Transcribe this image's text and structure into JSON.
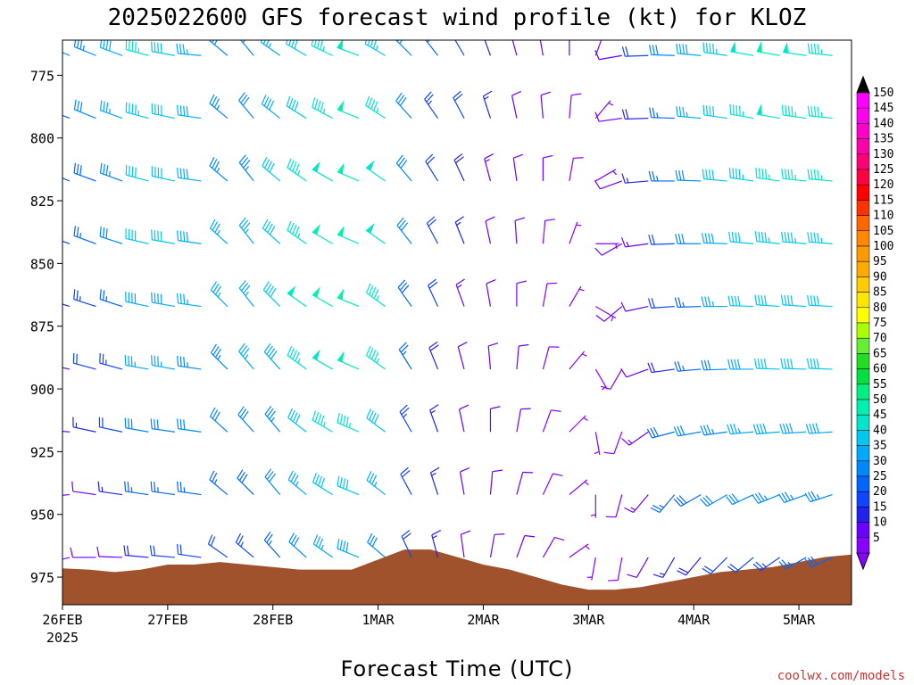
{
  "chart_data": {
    "type": "wind-barb-time-height",
    "title": "2025022600 GFS forecast wind profile (kt) for KLOZ",
    "xlabel": "Forecast Time (UTC)",
    "ylabel": "",
    "credit": "coolwx.com/models",
    "x_axis": {
      "min_hours": 0,
      "max_hours": 180,
      "ticks": [
        {
          "label": "26FEB",
          "sublabel": "2025",
          "hours": 0
        },
        {
          "label": "27FEB",
          "sublabel": "",
          "hours": 24
        },
        {
          "label": "28FEB",
          "sublabel": "",
          "hours": 48
        },
        {
          "label": "1MAR",
          "sublabel": "",
          "hours": 72
        },
        {
          "label": "2MAR",
          "sublabel": "",
          "hours": 96
        },
        {
          "label": "3MAR",
          "sublabel": "",
          "hours": 120
        },
        {
          "label": "4MAR",
          "sublabel": "",
          "hours": 144
        },
        {
          "label": "5MAR",
          "sublabel": "",
          "hours": 168
        }
      ]
    },
    "y_axis": {
      "unit": "hPa",
      "min": 761,
      "max": 986,
      "reversed": true,
      "ticks": [
        775,
        800,
        825,
        850,
        875,
        900,
        925,
        950,
        975
      ]
    },
    "levels": [
      765,
      790,
      815,
      840,
      865,
      890,
      915,
      940,
      965
    ],
    "times_hours": [
      0,
      6,
      12,
      18,
      24,
      30,
      36,
      42,
      48,
      54,
      60,
      66,
      72,
      78,
      84,
      90,
      96,
      102,
      108,
      114,
      120,
      126,
      132,
      138,
      144,
      150,
      156,
      162,
      168,
      174
    ],
    "wind_series": [
      {
        "time_hours": 0,
        "dir_deg": [
          292,
          292,
          292,
          290,
          288,
          282,
          275,
          265,
          255
        ],
        "speed_kt": [
          30,
          27,
          25,
          22,
          18,
          14,
          10,
          8,
          6
        ]
      },
      {
        "time_hours": 6,
        "dir_deg": [
          292,
          292,
          290,
          290,
          288,
          285,
          282,
          278,
          270
        ],
        "speed_kt": [
          33,
          30,
          28,
          26,
          23,
          20,
          16,
          12,
          10
        ]
      },
      {
        "time_hours": 12,
        "dir_deg": [
          290,
          290,
          290,
          288,
          288,
          285,
          282,
          278,
          272
        ],
        "speed_kt": [
          38,
          35,
          33,
          30,
          27,
          24,
          20,
          16,
          12
        ]
      },
      {
        "time_hours": 18,
        "dir_deg": [
          285,
          285,
          285,
          283,
          282,
          280,
          280,
          278,
          275
        ],
        "speed_kt": [
          46,
          44,
          42,
          40,
          38,
          35,
          30,
          25,
          18
        ]
      },
      {
        "time_hours": 24,
        "dir_deg": [
          280,
          282,
          282,
          280,
          280,
          280,
          278,
          278,
          275
        ],
        "speed_kt": [
          40,
          42,
          42,
          40,
          38,
          35,
          30,
          25,
          20
        ]
      },
      {
        "time_hours": 30,
        "dir_deg": [
          275,
          278,
          278,
          278,
          278,
          278,
          278,
          278,
          278
        ],
        "speed_kt": [
          36,
          38,
          38,
          38,
          36,
          34,
          30,
          26,
          20
        ]
      },
      {
        "time_hours": 36,
        "dir_deg": [
          310,
          310,
          310,
          312,
          315,
          315,
          312,
          310,
          305
        ],
        "speed_kt": [
          32,
          34,
          34,
          35,
          35,
          34,
          30,
          26,
          22
        ]
      },
      {
        "time_hours": 42,
        "dir_deg": [
          320,
          320,
          322,
          322,
          322,
          320,
          318,
          315,
          310
        ],
        "speed_kt": [
          30,
          32,
          34,
          36,
          36,
          35,
          32,
          28,
          24
        ]
      },
      {
        "time_hours": 48,
        "dir_deg": [
          305,
          308,
          310,
          312,
          315,
          318,
          320,
          320,
          318
        ],
        "speed_kt": [
          36,
          38,
          40,
          40,
          40,
          38,
          34,
          30,
          26
        ]
      },
      {
        "time_hours": 54,
        "dir_deg": [
          300,
          302,
          305,
          305,
          305,
          306,
          308,
          310,
          312
        ],
        "speed_kt": [
          40,
          42,
          45,
          47,
          48,
          46,
          42,
          36,
          30
        ]
      },
      {
        "time_hours": 60,
        "dir_deg": [
          295,
          298,
          300,
          300,
          300,
          300,
          300,
          302,
          305
        ],
        "speed_kt": [
          45,
          46,
          48,
          50,
          50,
          48,
          45,
          40,
          35
        ]
      },
      {
        "time_hours": 66,
        "dir_deg": [
          290,
          292,
          293,
          293,
          292,
          293,
          293,
          292,
          292
        ],
        "speed_kt": [
          48,
          50,
          51,
          52,
          52,
          50,
          46,
          42,
          38
        ]
      },
      {
        "time_hours": 72,
        "dir_deg": [
          300,
          303,
          305,
          305,
          306,
          306,
          307,
          308,
          310
        ],
        "speed_kt": [
          44,
          46,
          48,
          48,
          47,
          45,
          40,
          35,
          30
        ]
      },
      {
        "time_hours": 78,
        "dir_deg": [
          315,
          318,
          320,
          322,
          325,
          328,
          330,
          332,
          335
        ],
        "speed_kt": [
          30,
          30,
          30,
          30,
          28,
          26,
          24,
          22,
          20
        ]
      },
      {
        "time_hours": 84,
        "dir_deg": [
          322,
          325,
          328,
          332,
          335,
          338,
          340,
          342,
          345
        ],
        "speed_kt": [
          25,
          24,
          22,
          22,
          20,
          18,
          17,
          16,
          15
        ]
      },
      {
        "time_hours": 90,
        "dir_deg": [
          330,
          332,
          335,
          338,
          340,
          345,
          348,
          350,
          352
        ],
        "speed_kt": [
          22,
          20,
          18,
          16,
          14,
          12,
          12,
          12,
          12
        ]
      },
      {
        "time_hours": 96,
        "dir_deg": [
          340,
          342,
          345,
          348,
          350,
          355,
          0,
          5,
          10
        ],
        "speed_kt": [
          16,
          15,
          14,
          12,
          12,
          12,
          12,
          12,
          12
        ]
      },
      {
        "time_hours": 102,
        "dir_deg": [
          345,
          348,
          352,
          356,
          0,
          5,
          10,
          15,
          20
        ],
        "speed_kt": [
          14,
          12,
          12,
          11,
          10,
          10,
          10,
          10,
          10
        ]
      },
      {
        "time_hours": 108,
        "dir_deg": [
          350,
          355,
          0,
          5,
          10,
          15,
          20,
          25,
          30
        ],
        "speed_kt": [
          12,
          10,
          10,
          9,
          8,
          8,
          8,
          8,
          8
        ]
      },
      {
        "time_hours": 114,
        "dir_deg": [
          0,
          5,
          10,
          20,
          30,
          40,
          45,
          50,
          55
        ],
        "speed_kt": [
          10,
          9,
          8,
          7,
          6,
          6,
          6,
          6,
          6
        ]
      },
      {
        "time_hours": 120,
        "dir_deg": [
          20,
          40,
          60,
          90,
          120,
          150,
          170,
          180,
          190
        ],
        "speed_kt": [
          8,
          7,
          6,
          5,
          5,
          5,
          5,
          5,
          5
        ]
      },
      {
        "time_hours": 126,
        "dir_deg": [
          260,
          262,
          250,
          240,
          230,
          210,
          200,
          195,
          190
        ],
        "speed_kt": [
          12,
          12,
          12,
          12,
          10,
          8,
          8,
          8,
          8
        ]
      },
      {
        "time_hours": 132,
        "dir_deg": [
          268,
          268,
          265,
          262,
          258,
          250,
          235,
          220,
          210
        ],
        "speed_kt": [
          20,
          18,
          16,
          14,
          12,
          12,
          14,
          14,
          12
        ]
      },
      {
        "time_hours": 138,
        "dir_deg": [
          272,
          272,
          270,
          268,
          266,
          262,
          255,
          220,
          210
        ],
        "speed_kt": [
          30,
          27,
          25,
          22,
          20,
          18,
          28,
          26,
          16
        ]
      },
      {
        "time_hours": 144,
        "dir_deg": [
          275,
          275,
          272,
          270,
          268,
          265,
          260,
          240,
          220
        ],
        "speed_kt": [
          38,
          35,
          32,
          30,
          27,
          25,
          30,
          28,
          18
        ]
      },
      {
        "time_hours": 150,
        "dir_deg": [
          278,
          278,
          275,
          272,
          270,
          268,
          262,
          240,
          225
        ],
        "speed_kt": [
          44,
          42,
          40,
          38,
          35,
          32,
          34,
          30,
          20
        ]
      },
      {
        "time_hours": 156,
        "dir_deg": [
          280,
          280,
          278,
          275,
          272,
          270,
          265,
          245,
          230
        ],
        "speed_kt": [
          48,
          46,
          44,
          42,
          40,
          38,
          36,
          32,
          22
        ]
      },
      {
        "time_hours": 162,
        "dir_deg": [
          280,
          280,
          278,
          276,
          274,
          272,
          265,
          248,
          235
        ],
        "speed_kt": [
          50,
          48,
          46,
          44,
          42,
          40,
          38,
          34,
          24
        ]
      },
      {
        "time_hours": 168,
        "dir_deg": [
          278,
          278,
          276,
          275,
          274,
          272,
          266,
          250,
          240
        ],
        "speed_kt": [
          48,
          47,
          46,
          44,
          42,
          40,
          38,
          34,
          26
        ]
      },
      {
        "time_hours": 174,
        "dir_deg": [
          276,
          276,
          275,
          274,
          273,
          272,
          266,
          252,
          245
        ],
        "speed_kt": [
          47,
          46,
          45,
          44,
          42,
          40,
          38,
          34,
          28
        ]
      }
    ],
    "surface_pressure": {
      "times_hours": [
        0,
        6,
        12,
        18,
        24,
        30,
        36,
        42,
        48,
        54,
        60,
        66,
        72,
        78,
        84,
        90,
        96,
        102,
        108,
        114,
        120,
        126,
        132,
        138,
        144,
        150,
        156,
        162,
        168,
        174,
        180
      ],
      "hpa": [
        971.5,
        972,
        973,
        972,
        970,
        970,
        969,
        970,
        971,
        972,
        972,
        972,
        968,
        964,
        964,
        967,
        970,
        972,
        975,
        978,
        980,
        980,
        979,
        977,
        975,
        973,
        972,
        971,
        969,
        967,
        966
      ]
    },
    "colorbar": {
      "label_values": [
        5,
        10,
        15,
        20,
        25,
        30,
        35,
        40,
        45,
        50,
        55,
        60,
        65,
        70,
        75,
        80,
        85,
        90,
        95,
        100,
        105,
        110,
        115,
        120,
        125,
        130,
        135,
        140,
        145,
        150
      ],
      "colors": [
        "#8800ff",
        "#6a00ff",
        "#2222ee",
        "#1144ff",
        "#0066ff",
        "#0088ff",
        "#00aaff",
        "#00c8ee",
        "#00e5cc",
        "#00f0b0",
        "#00f080",
        "#00e040",
        "#22dd22",
        "#66ee33",
        "#aaff00",
        "#ffff00",
        "#ffe600",
        "#ffcc00",
        "#ffaa00",
        "#ff9900",
        "#ff8800",
        "#ff6600",
        "#ff3300",
        "#ff0000",
        "#ff0044",
        "#ff0077",
        "#ff00aa",
        "#ff00cc",
        "#ff00ee",
        "#ff00ff"
      ]
    },
    "terrain_color": "#a0522d"
  }
}
